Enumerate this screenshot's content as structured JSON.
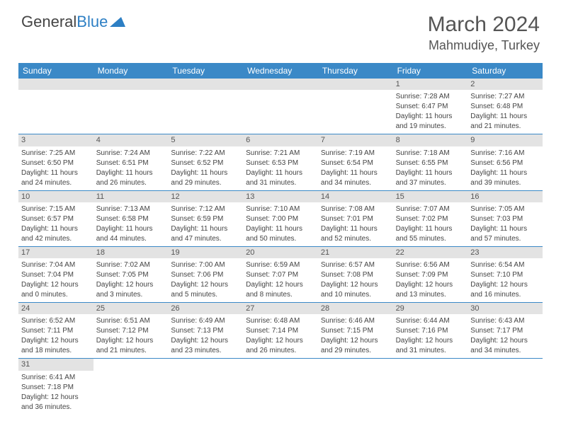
{
  "logo": {
    "general": "General",
    "blue": "Blue"
  },
  "title": "March 2024",
  "location": "Mahmudiye, Turkey",
  "colors": {
    "header_bg": "#3b89c7",
    "header_text": "#ffffff",
    "daynum_bg": "#e3e3e3",
    "text": "#444444",
    "border": "#3b89c7",
    "logo_blue": "#2d7fc4"
  },
  "day_names": [
    "Sunday",
    "Monday",
    "Tuesday",
    "Wednesday",
    "Thursday",
    "Friday",
    "Saturday"
  ],
  "weeks": [
    [
      {
        "empty": true
      },
      {
        "empty": true
      },
      {
        "empty": true
      },
      {
        "empty": true
      },
      {
        "empty": true
      },
      {
        "day": "1",
        "sunrise": "Sunrise: 7:28 AM",
        "sunset": "Sunset: 6:47 PM",
        "daylight1": "Daylight: 11 hours",
        "daylight2": "and 19 minutes."
      },
      {
        "day": "2",
        "sunrise": "Sunrise: 7:27 AM",
        "sunset": "Sunset: 6:48 PM",
        "daylight1": "Daylight: 11 hours",
        "daylight2": "and 21 minutes."
      }
    ],
    [
      {
        "day": "3",
        "sunrise": "Sunrise: 7:25 AM",
        "sunset": "Sunset: 6:50 PM",
        "daylight1": "Daylight: 11 hours",
        "daylight2": "and 24 minutes."
      },
      {
        "day": "4",
        "sunrise": "Sunrise: 7:24 AM",
        "sunset": "Sunset: 6:51 PM",
        "daylight1": "Daylight: 11 hours",
        "daylight2": "and 26 minutes."
      },
      {
        "day": "5",
        "sunrise": "Sunrise: 7:22 AM",
        "sunset": "Sunset: 6:52 PM",
        "daylight1": "Daylight: 11 hours",
        "daylight2": "and 29 minutes."
      },
      {
        "day": "6",
        "sunrise": "Sunrise: 7:21 AM",
        "sunset": "Sunset: 6:53 PM",
        "daylight1": "Daylight: 11 hours",
        "daylight2": "and 31 minutes."
      },
      {
        "day": "7",
        "sunrise": "Sunrise: 7:19 AM",
        "sunset": "Sunset: 6:54 PM",
        "daylight1": "Daylight: 11 hours",
        "daylight2": "and 34 minutes."
      },
      {
        "day": "8",
        "sunrise": "Sunrise: 7:18 AM",
        "sunset": "Sunset: 6:55 PM",
        "daylight1": "Daylight: 11 hours",
        "daylight2": "and 37 minutes."
      },
      {
        "day": "9",
        "sunrise": "Sunrise: 7:16 AM",
        "sunset": "Sunset: 6:56 PM",
        "daylight1": "Daylight: 11 hours",
        "daylight2": "and 39 minutes."
      }
    ],
    [
      {
        "day": "10",
        "sunrise": "Sunrise: 7:15 AM",
        "sunset": "Sunset: 6:57 PM",
        "daylight1": "Daylight: 11 hours",
        "daylight2": "and 42 minutes."
      },
      {
        "day": "11",
        "sunrise": "Sunrise: 7:13 AM",
        "sunset": "Sunset: 6:58 PM",
        "daylight1": "Daylight: 11 hours",
        "daylight2": "and 44 minutes."
      },
      {
        "day": "12",
        "sunrise": "Sunrise: 7:12 AM",
        "sunset": "Sunset: 6:59 PM",
        "daylight1": "Daylight: 11 hours",
        "daylight2": "and 47 minutes."
      },
      {
        "day": "13",
        "sunrise": "Sunrise: 7:10 AM",
        "sunset": "Sunset: 7:00 PM",
        "daylight1": "Daylight: 11 hours",
        "daylight2": "and 50 minutes."
      },
      {
        "day": "14",
        "sunrise": "Sunrise: 7:08 AM",
        "sunset": "Sunset: 7:01 PM",
        "daylight1": "Daylight: 11 hours",
        "daylight2": "and 52 minutes."
      },
      {
        "day": "15",
        "sunrise": "Sunrise: 7:07 AM",
        "sunset": "Sunset: 7:02 PM",
        "daylight1": "Daylight: 11 hours",
        "daylight2": "and 55 minutes."
      },
      {
        "day": "16",
        "sunrise": "Sunrise: 7:05 AM",
        "sunset": "Sunset: 7:03 PM",
        "daylight1": "Daylight: 11 hours",
        "daylight2": "and 57 minutes."
      }
    ],
    [
      {
        "day": "17",
        "sunrise": "Sunrise: 7:04 AM",
        "sunset": "Sunset: 7:04 PM",
        "daylight1": "Daylight: 12 hours",
        "daylight2": "and 0 minutes."
      },
      {
        "day": "18",
        "sunrise": "Sunrise: 7:02 AM",
        "sunset": "Sunset: 7:05 PM",
        "daylight1": "Daylight: 12 hours",
        "daylight2": "and 3 minutes."
      },
      {
        "day": "19",
        "sunrise": "Sunrise: 7:00 AM",
        "sunset": "Sunset: 7:06 PM",
        "daylight1": "Daylight: 12 hours",
        "daylight2": "and 5 minutes."
      },
      {
        "day": "20",
        "sunrise": "Sunrise: 6:59 AM",
        "sunset": "Sunset: 7:07 PM",
        "daylight1": "Daylight: 12 hours",
        "daylight2": "and 8 minutes."
      },
      {
        "day": "21",
        "sunrise": "Sunrise: 6:57 AM",
        "sunset": "Sunset: 7:08 PM",
        "daylight1": "Daylight: 12 hours",
        "daylight2": "and 10 minutes."
      },
      {
        "day": "22",
        "sunrise": "Sunrise: 6:56 AM",
        "sunset": "Sunset: 7:09 PM",
        "daylight1": "Daylight: 12 hours",
        "daylight2": "and 13 minutes."
      },
      {
        "day": "23",
        "sunrise": "Sunrise: 6:54 AM",
        "sunset": "Sunset: 7:10 PM",
        "daylight1": "Daylight: 12 hours",
        "daylight2": "and 16 minutes."
      }
    ],
    [
      {
        "day": "24",
        "sunrise": "Sunrise: 6:52 AM",
        "sunset": "Sunset: 7:11 PM",
        "daylight1": "Daylight: 12 hours",
        "daylight2": "and 18 minutes."
      },
      {
        "day": "25",
        "sunrise": "Sunrise: 6:51 AM",
        "sunset": "Sunset: 7:12 PM",
        "daylight1": "Daylight: 12 hours",
        "daylight2": "and 21 minutes."
      },
      {
        "day": "26",
        "sunrise": "Sunrise: 6:49 AM",
        "sunset": "Sunset: 7:13 PM",
        "daylight1": "Daylight: 12 hours",
        "daylight2": "and 23 minutes."
      },
      {
        "day": "27",
        "sunrise": "Sunrise: 6:48 AM",
        "sunset": "Sunset: 7:14 PM",
        "daylight1": "Daylight: 12 hours",
        "daylight2": "and 26 minutes."
      },
      {
        "day": "28",
        "sunrise": "Sunrise: 6:46 AM",
        "sunset": "Sunset: 7:15 PM",
        "daylight1": "Daylight: 12 hours",
        "daylight2": "and 29 minutes."
      },
      {
        "day": "29",
        "sunrise": "Sunrise: 6:44 AM",
        "sunset": "Sunset: 7:16 PM",
        "daylight1": "Daylight: 12 hours",
        "daylight2": "and 31 minutes."
      },
      {
        "day": "30",
        "sunrise": "Sunrise: 6:43 AM",
        "sunset": "Sunset: 7:17 PM",
        "daylight1": "Daylight: 12 hours",
        "daylight2": "and 34 minutes."
      }
    ],
    [
      {
        "day": "31",
        "sunrise": "Sunrise: 6:41 AM",
        "sunset": "Sunset: 7:18 PM",
        "daylight1": "Daylight: 12 hours",
        "daylight2": "and 36 minutes."
      },
      {
        "empty": true
      },
      {
        "empty": true
      },
      {
        "empty": true
      },
      {
        "empty": true
      },
      {
        "empty": true
      },
      {
        "empty": true
      }
    ]
  ]
}
